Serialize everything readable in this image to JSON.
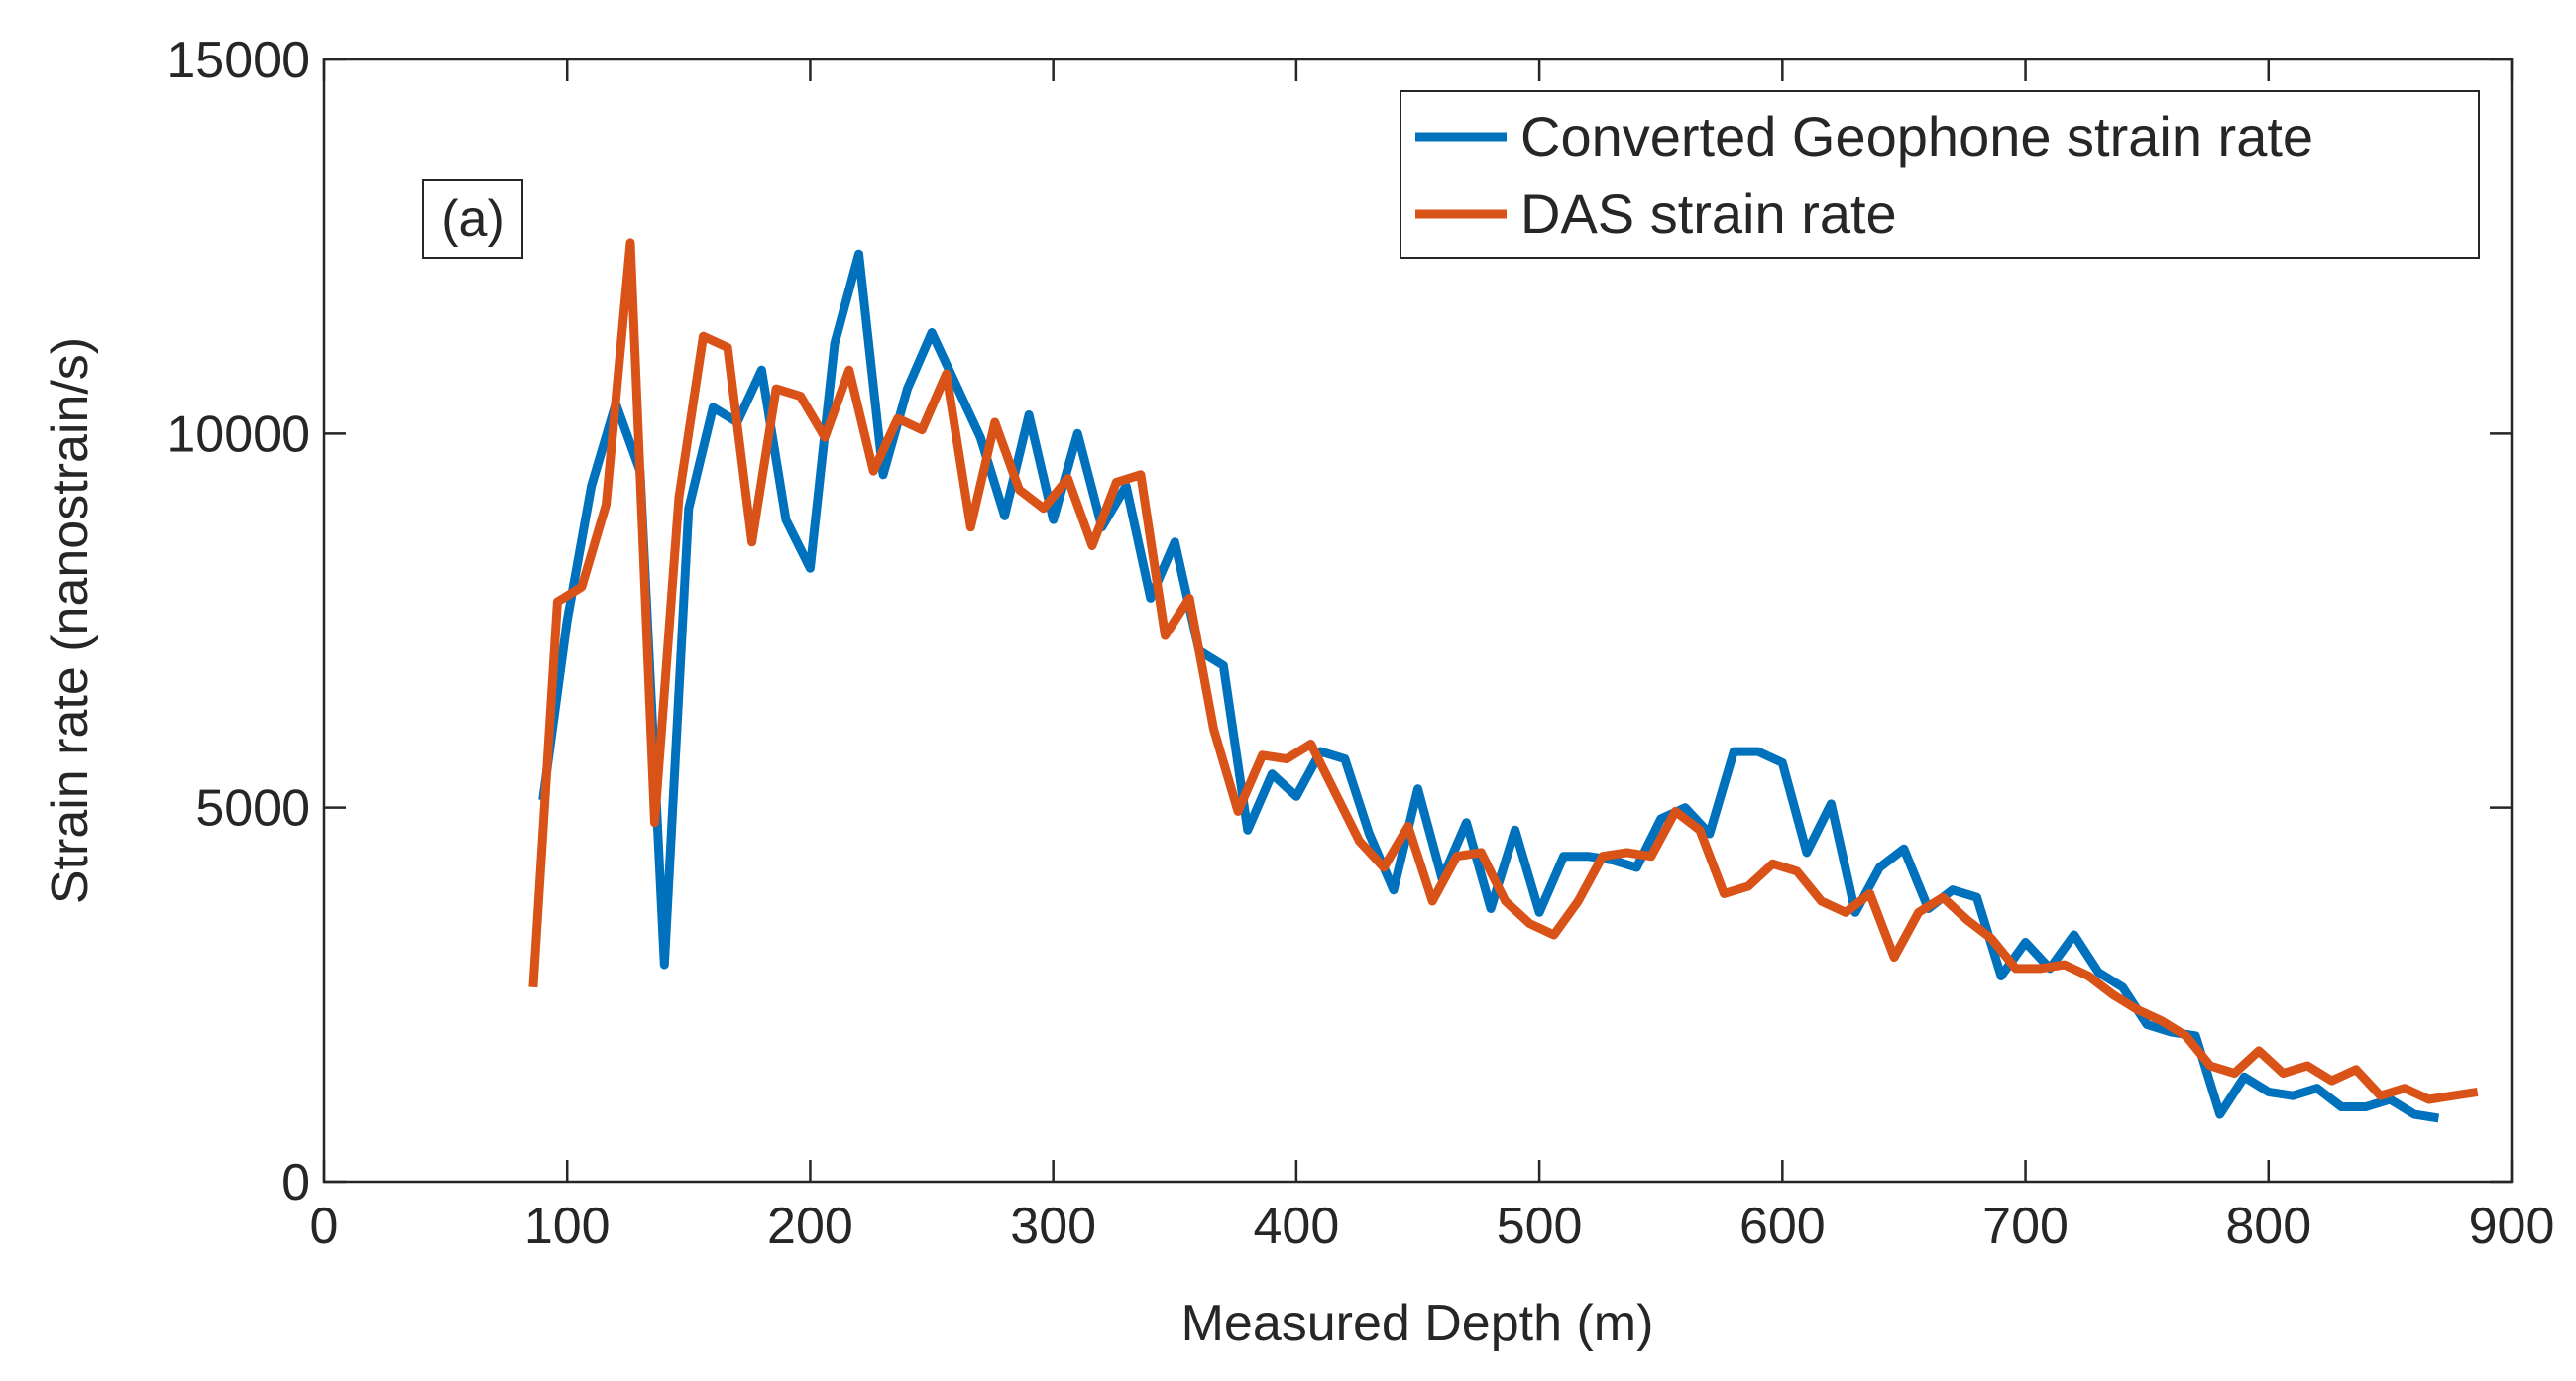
{
  "chart_data": {
    "type": "line",
    "title": "",
    "xlabel": "Measured Depth (m)",
    "ylabel": "Strain rate (nanostrain/s)",
    "xlim": [
      0,
      900
    ],
    "ylim": [
      0,
      15000
    ],
    "xticks": [
      0,
      100,
      200,
      300,
      400,
      500,
      600,
      700,
      800,
      900
    ],
    "xtick_labels": [
      "0",
      "100",
      "200",
      "300",
      "400",
      "500",
      "600",
      "700",
      "800",
      "900"
    ],
    "yticks": [
      0,
      5000,
      10000,
      15000
    ],
    "ytick_labels": [
      "0",
      "5000",
      "10000",
      "15000"
    ],
    "annotation": "(a)",
    "legend_position": "top-right",
    "series": [
      {
        "name": "Converted Geophone strain rate",
        "color": "#0072BD",
        "x": [
          90,
          100,
          110,
          120,
          130,
          140,
          150,
          160,
          170,
          180,
          190,
          200,
          210,
          220,
          230,
          240,
          250,
          260,
          270,
          280,
          290,
          300,
          310,
          320,
          330,
          340,
          350,
          360,
          370,
          380,
          390,
          400,
          410,
          420,
          430,
          440,
          450,
          460,
          470,
          480,
          490,
          500,
          510,
          520,
          530,
          540,
          550,
          560,
          570,
          580,
          590,
          600,
          610,
          620,
          630,
          640,
          650,
          660,
          670,
          680,
          690,
          700,
          710,
          720,
          730,
          740,
          750,
          760,
          770,
          780,
          790,
          800,
          810,
          820,
          830,
          840,
          850,
          860,
          870
        ],
        "y": [
          5100,
          7500,
          9300,
          10400,
          9500,
          2900,
          9000,
          10350,
          10150,
          10850,
          8850,
          8200,
          11200,
          12400,
          9450,
          10600,
          11350,
          10650,
          9950,
          8900,
          10250,
          8850,
          10000,
          8750,
          9300,
          7800,
          8550,
          7100,
          6900,
          4700,
          5450,
          5150,
          5750,
          5650,
          4650,
          3900,
          5250,
          4050,
          4800,
          3650,
          4700,
          3600,
          4350,
          4350,
          4300,
          4200,
          4850,
          5000,
          4650,
          5750,
          5750,
          5600,
          4400,
          5050,
          3600,
          4200,
          4450,
          3650,
          3900,
          3800,
          2750,
          3200,
          2850,
          3300,
          2800,
          2600,
          2100,
          2000,
          1950,
          900,
          1400,
          1200,
          1150,
          1250,
          1000,
          1000,
          1100,
          900,
          850
        ]
      },
      {
        "name": "DAS strain rate",
        "color": "#D95319",
        "x": [
          86,
          96,
          106,
          116,
          126,
          136,
          146,
          156,
          166,
          176,
          186,
          196,
          206,
          216,
          226,
          236,
          246,
          256,
          266,
          276,
          286,
          296,
          306,
          316,
          326,
          336,
          346,
          356,
          366,
          376,
          386,
          396,
          406,
          416,
          426,
          436,
          446,
          456,
          466,
          476,
          486,
          496,
          506,
          516,
          526,
          536,
          546,
          556,
          566,
          576,
          586,
          596,
          606,
          616,
          626,
          636,
          646,
          656,
          666,
          676,
          686,
          696,
          706,
          716,
          726,
          736,
          746,
          756,
          766,
          776,
          786,
          796,
          806,
          816,
          826,
          836,
          846,
          856,
          866,
          876,
          886
        ],
        "y": [
          2600,
          7750,
          7950,
          9050,
          12550,
          4800,
          9150,
          11300,
          11150,
          8550,
          10600,
          10500,
          9950,
          10850,
          9500,
          10200,
          10050,
          10800,
          8750,
          10150,
          9250,
          9000,
          9400,
          8500,
          9350,
          9450,
          7300,
          7800,
          6050,
          4950,
          5700,
          5650,
          5850,
          5200,
          4550,
          4200,
          4750,
          3750,
          4350,
          4400,
          3750,
          3450,
          3300,
          3750,
          4350,
          4400,
          4350,
          4950,
          4700,
          3850,
          3950,
          4250,
          4150,
          3750,
          3600,
          3850,
          3000,
          3600,
          3800,
          3500,
          3250,
          2850,
          2850,
          2900,
          2750,
          2500,
          2300,
          2150,
          1950,
          1550,
          1450,
          1750,
          1450,
          1550,
          1350,
          1500,
          1150,
          1250,
          1100,
          1150,
          1200
        ]
      }
    ]
  }
}
